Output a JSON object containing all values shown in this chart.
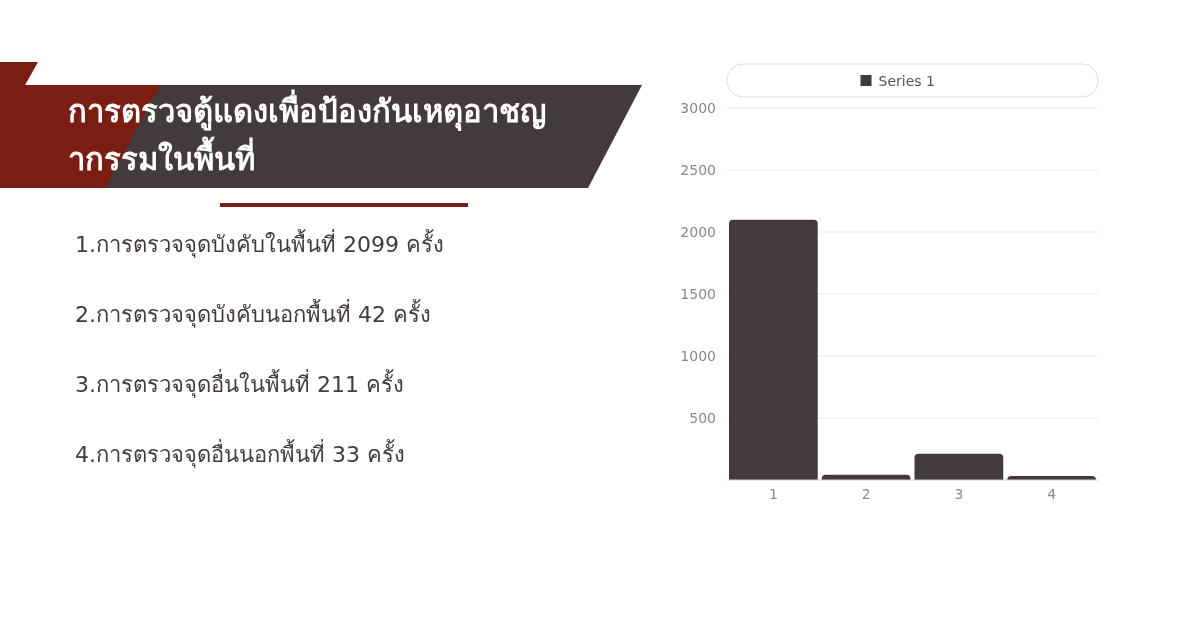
{
  "chart_data": {
    "type": "bar",
    "title": "การตรวจตู้แดงเพื่อป้องกันเหตุอาชญากรรมในพื้นที่",
    "annotations": [
      "1.การตรวจจุดบังคับในพื้นที่ 2099 ครั้ง",
      "2.การตรวจจุดบังคับนอกพื้นที่ 42 ครั้ง",
      "3.การตรวจจุดอื่นในพื้นที่ 211 ครั้ง",
      "4.การตรวจจุดอื่นนอกพื้นที่ 33 ครั้ง"
    ],
    "categories": [
      "1",
      "2",
      "3",
      "4"
    ],
    "series": [
      {
        "name": "Series 1",
        "color": "#433b3b",
        "values": [
          2099,
          42,
          211,
          33
        ]
      }
    ],
    "ylim": [
      0,
      3000
    ],
    "yticks": [
      500,
      1000,
      1500,
      2000,
      2500,
      3000
    ],
    "grid": "y",
    "legend": "top"
  }
}
